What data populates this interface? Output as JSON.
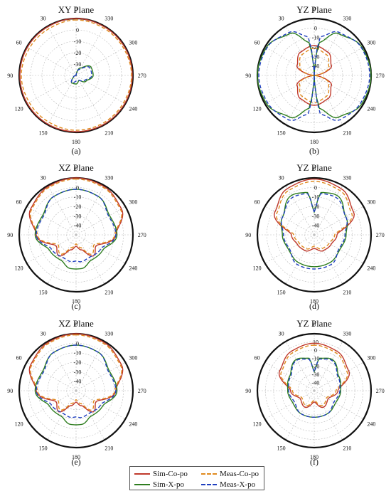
{
  "chart_data": [
    {
      "type": "polar",
      "title": "XY Plane",
      "caption": "(a)",
      "angle_ticks": [
        "0",
        "30",
        "60",
        "90",
        "120",
        "150",
        "180",
        "210",
        "240",
        "270",
        "300",
        "330"
      ],
      "radial_ticks": [
        "0",
        "-10",
        "-20",
        "-30"
      ],
      "rlim": [
        -40,
        0
      ],
      "series": [
        {
          "name": "Sim-Co-po",
          "angles": [
            0,
            30,
            60,
            90,
            120,
            150,
            180,
            210,
            240,
            270,
            300,
            330
          ],
          "values": [
            0,
            -0.5,
            -0.5,
            -0.5,
            -0.5,
            -0.5,
            -0.5,
            -0.5,
            -0.5,
            -0.5,
            -0.5,
            -0.5
          ]
        },
        {
          "name": "Meas-Co-po",
          "angles": [
            0,
            30,
            60,
            90,
            120,
            150,
            180,
            210,
            240,
            270,
            300,
            330
          ],
          "values": [
            -1,
            -2,
            -2,
            -1.5,
            -2,
            -2,
            -1.5,
            -1.5,
            -1.5,
            -1,
            -1.5,
            -1.5
          ]
        },
        {
          "name": "Sim-X-po",
          "angles": [
            0,
            30,
            60,
            90,
            120,
            150,
            180,
            210,
            240,
            270,
            300,
            330
          ],
          "values": [
            -40,
            -40,
            -40,
            -40,
            -38,
            -34,
            -34,
            -36,
            -32,
            -28,
            -28,
            -34
          ]
        },
        {
          "name": "Meas-X-po",
          "angles": [
            0,
            30,
            60,
            90,
            120,
            150,
            180,
            210,
            240,
            270,
            300,
            330
          ],
          "values": [
            -40,
            -40,
            -40,
            -40,
            -38,
            -34,
            -36,
            -36,
            -33,
            -29,
            -29,
            -35
          ]
        }
      ]
    },
    {
      "type": "polar",
      "title": "YZ Plane",
      "caption": "(b)",
      "angle_ticks": [
        "0",
        "30",
        "60",
        "90",
        "120",
        "150",
        "180",
        "210",
        "240",
        "270",
        "300",
        "330"
      ],
      "radial_ticks": [
        "0",
        "-10",
        "-20",
        "-30",
        "-40"
      ],
      "rlim": [
        -40,
        0
      ],
      "series": [
        {
          "name": "Sim-Co-po",
          "angles": [
            0,
            30,
            60,
            90,
            120,
            150,
            180,
            210,
            240,
            270,
            300,
            330
          ],
          "values": [
            -19,
            -21,
            -26,
            -40,
            -26,
            -21,
            -19,
            -21,
            -26,
            -40,
            -26,
            -21
          ]
        },
        {
          "name": "Meas-Co-po",
          "angles": [
            0,
            30,
            60,
            90,
            120,
            150,
            180,
            210,
            240,
            270,
            300,
            330
          ],
          "values": [
            -21,
            -23,
            -28,
            -40,
            -28,
            -23,
            -21,
            -23,
            -28,
            -40,
            -28,
            -23
          ]
        },
        {
          "name": "Sim-X-po",
          "angles": [
            0,
            10,
            30,
            60,
            90,
            120,
            150,
            170,
            180,
            190,
            210,
            240,
            270,
            300,
            330,
            350
          ],
          "values": [
            -40,
            -16,
            -6,
            -1,
            0,
            -1,
            -6,
            -16,
            -40,
            -16,
            -6,
            -1,
            0,
            -1,
            -6,
            -16
          ]
        },
        {
          "name": "Meas-X-po",
          "angles": [
            0,
            10,
            30,
            60,
            90,
            120,
            150,
            170,
            180,
            190,
            210,
            240,
            270,
            300,
            330,
            350
          ],
          "values": [
            -40,
            -12,
            -5,
            -1.5,
            -1,
            -2,
            -4,
            -12,
            -40,
            -12,
            -4,
            -2,
            -1,
            -1.5,
            -5,
            -12
          ]
        }
      ]
    },
    {
      "type": "polar",
      "title": "XZ Plane",
      "caption": "(c)",
      "angle_ticks": [
        "0",
        "30",
        "60",
        "90",
        "120",
        "150",
        "180",
        "210",
        "240",
        "270",
        "300",
        "330"
      ],
      "radial_ticks": [
        "0",
        "-10",
        "-20",
        "-30",
        "-40"
      ],
      "rlim": [
        -50,
        0
      ],
      "series": [
        {
          "name": "Sim-Co-po",
          "angles": [
            0,
            30,
            60,
            90,
            120,
            140,
            160,
            180,
            200,
            220,
            240,
            270,
            300,
            330
          ],
          "values": [
            0,
            -1,
            -4,
            -15,
            -30,
            -26,
            -36,
            -40,
            -36,
            -26,
            -30,
            -15,
            -4,
            -1
          ]
        },
        {
          "name": "Meas-Co-po",
          "angles": [
            0,
            30,
            60,
            90,
            120,
            140,
            160,
            180,
            200,
            220,
            240,
            270,
            300,
            330
          ],
          "values": [
            -1,
            -2,
            -5,
            -16,
            -32,
            -28,
            -38,
            -42,
            -38,
            -28,
            -32,
            -16,
            -5,
            -2
          ]
        },
        {
          "name": "Sim-X-po",
          "angles": [
            0,
            30,
            60,
            90,
            120,
            150,
            170,
            180,
            190,
            210,
            240,
            270,
            300,
            330
          ],
          "values": [
            -10,
            -11,
            -16,
            -14,
            -23,
            -24,
            -20,
            -20,
            -20,
            -24,
            -23,
            -14,
            -16,
            -11
          ]
        },
        {
          "name": "Meas-X-po",
          "angles": [
            0,
            30,
            60,
            90,
            120,
            150,
            170,
            180,
            190,
            210,
            240,
            270,
            300,
            330
          ],
          "values": [
            -10,
            -11,
            -17,
            -15,
            -25,
            -27,
            -26,
            -27,
            -26,
            -27,
            -25,
            -15,
            -17,
            -11
          ]
        }
      ]
    },
    {
      "type": "polar",
      "title": "YZ Plane",
      "caption": "(d)",
      "angle_ticks": [
        "0",
        "30",
        "60",
        "90",
        "120",
        "150",
        "180",
        "210",
        "240",
        "270",
        "300",
        "330"
      ],
      "radial_ticks": [
        "0",
        "-10",
        "-20",
        "-30",
        "-40"
      ],
      "rlim": [
        -50,
        0
      ],
      "series": [
        {
          "name": "Sim-Co-po",
          "angles": [
            0,
            30,
            60,
            90,
            120,
            150,
            180,
            210,
            240,
            270,
            300,
            330
          ],
          "values": [
            -1,
            -3,
            -10,
            -30,
            -33,
            -34,
            -38,
            -34,
            -33,
            -30,
            -10,
            -3
          ]
        },
        {
          "name": "Meas-Co-po",
          "angles": [
            0,
            30,
            60,
            90,
            120,
            150,
            180,
            210,
            240,
            270,
            300,
            330
          ],
          "values": [
            -3,
            -5,
            -12,
            -32,
            -35,
            -36,
            -40,
            -36,
            -35,
            -32,
            -12,
            -5
          ]
        },
        {
          "name": "Sim-X-po",
          "angles": [
            0,
            10,
            30,
            60,
            90,
            120,
            150,
            180,
            210,
            240,
            270,
            300,
            330,
            350
          ],
          "values": [
            -30,
            -12,
            -10,
            -18,
            -22,
            -24,
            -22,
            -22,
            -22,
            -24,
            -22,
            -18,
            -10,
            -12
          ]
        },
        {
          "name": "Meas-X-po",
          "angles": [
            0,
            10,
            30,
            60,
            90,
            120,
            150,
            180,
            210,
            240,
            270,
            300,
            330,
            350
          ],
          "values": [
            -30,
            -13,
            -12,
            -18,
            -23,
            -25,
            -20,
            -20,
            -20,
            -25,
            -23,
            -18,
            -12,
            -13
          ]
        }
      ]
    },
    {
      "type": "polar",
      "title": "XZ Plane",
      "caption": "(e)",
      "angle_ticks": [
        "0",
        "30",
        "60",
        "90",
        "120",
        "150",
        "180",
        "210",
        "240",
        "270",
        "300",
        "330"
      ],
      "radial_ticks": [
        "0",
        "-10",
        "-20",
        "-30",
        "-40"
      ],
      "rlim": [
        -50,
        0
      ],
      "series": [
        {
          "name": "Sim-Co-po",
          "angles": [
            0,
            30,
            60,
            90,
            120,
            140,
            160,
            180,
            200,
            220,
            240,
            270,
            300,
            330
          ],
          "values": [
            0,
            -1,
            -4,
            -15,
            -30,
            -26,
            -36,
            -40,
            -36,
            -26,
            -30,
            -15,
            -4,
            -1
          ]
        },
        {
          "name": "Meas-Co-po",
          "angles": [
            0,
            30,
            60,
            90,
            120,
            140,
            160,
            180,
            200,
            220,
            240,
            270,
            300,
            330
          ],
          "values": [
            -1,
            -2,
            -5,
            -16,
            -32,
            -28,
            -38,
            -42,
            -38,
            -28,
            -32,
            -16,
            -5,
            -2
          ]
        },
        {
          "name": "Sim-X-po",
          "angles": [
            0,
            30,
            60,
            90,
            120,
            150,
            170,
            180,
            190,
            210,
            240,
            270,
            300,
            330
          ],
          "values": [
            -10,
            -11,
            -16,
            -14,
            -23,
            -24,
            -20,
            -20,
            -20,
            -24,
            -23,
            -14,
            -16,
            -11
          ]
        },
        {
          "name": "Meas-X-po",
          "angles": [
            0,
            30,
            60,
            90,
            120,
            150,
            170,
            180,
            190,
            210,
            240,
            270,
            300,
            330
          ],
          "values": [
            -10,
            -11,
            -17,
            -15,
            -25,
            -27,
            -26,
            -27,
            -26,
            -27,
            -25,
            -15,
            -17,
            -11
          ]
        }
      ]
    },
    {
      "type": "polar",
      "title": "YZ Plane",
      "caption": "(f)",
      "angle_ticks": [
        "0",
        "30",
        "60",
        "90",
        "120",
        "150",
        "180",
        "210",
        "240",
        "270",
        "300",
        "330"
      ],
      "radial_ticks": [
        "10",
        "0",
        "-10",
        "-20",
        "-30",
        "-40"
      ],
      "rlim": [
        -50,
        10
      ],
      "series": [
        {
          "name": "Sim-Co-po",
          "angles": [
            0,
            30,
            60,
            90,
            120,
            150,
            180,
            210,
            240,
            270,
            300,
            330
          ],
          "values": [
            0,
            -2,
            -8,
            -25,
            -33,
            -30,
            -38,
            -30,
            -33,
            -25,
            -8,
            -2
          ]
        },
        {
          "name": "Meas-Co-po",
          "angles": [
            0,
            30,
            60,
            90,
            120,
            150,
            180,
            210,
            240,
            270,
            300,
            330
          ],
          "values": [
            -2,
            -4,
            -10,
            -27,
            -35,
            -32,
            -40,
            -32,
            -35,
            -27,
            -10,
            -4
          ]
        },
        {
          "name": "Sim-X-po",
          "angles": [
            0,
            10,
            30,
            60,
            90,
            120,
            150,
            180,
            210,
            240,
            270,
            300,
            330,
            350
          ],
          "values": [
            -30,
            -15,
            -12,
            -20,
            -22,
            -24,
            -22,
            -22,
            -22,
            -24,
            -22,
            -20,
            -12,
            -15
          ]
        },
        {
          "name": "Meas-X-po",
          "angles": [
            0,
            10,
            30,
            60,
            90,
            120,
            150,
            180,
            210,
            240,
            270,
            300,
            330,
            350
          ],
          "values": [
            -30,
            -16,
            -13,
            -21,
            -23,
            -26,
            -22,
            -22,
            -22,
            -26,
            -23,
            -21,
            -13,
            -16
          ]
        }
      ]
    }
  ],
  "legend": [
    {
      "name": "Sim-Co-po",
      "color": "#c0392b",
      "dash": ""
    },
    {
      "name": "Meas-Co-po",
      "color": "#e08a1e",
      "dash": "6,3"
    },
    {
      "name": "Sim-X-po",
      "color": "#2e7d1f",
      "dash": ""
    },
    {
      "name": "Meas-X-po",
      "color": "#1f3fbf",
      "dash": "6,3"
    }
  ],
  "colors": {
    "Sim-Co-po": "#c0392b",
    "Meas-Co-po": "#e08a1e",
    "Sim-X-po": "#2e7d1f",
    "Meas-X-po": "#1f3fbf"
  }
}
